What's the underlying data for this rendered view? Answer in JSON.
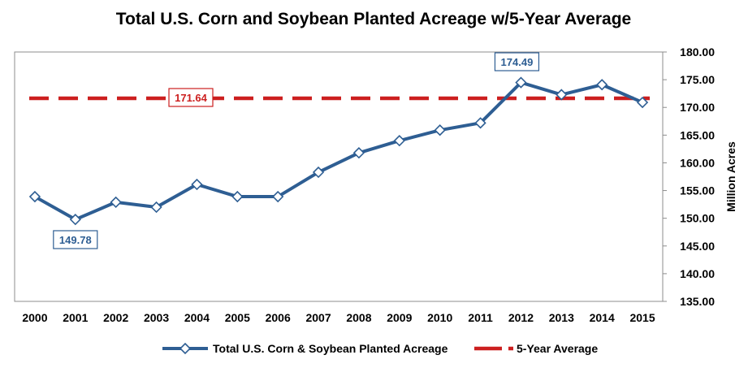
{
  "chart_data": {
    "type": "line",
    "title": "Total U.S. Corn and Soybean Planted Acreage w/5-Year Average",
    "xlabel": "",
    "ylabel": "Million Acres",
    "x": [
      "2000",
      "2001",
      "2002",
      "2003",
      "2004",
      "2005",
      "2006",
      "2007",
      "2008",
      "2009",
      "2010",
      "2011",
      "2012",
      "2013",
      "2014",
      "2015"
    ],
    "ylim": [
      135,
      180
    ],
    "yticks": [
      "135.00",
      "140.00",
      "145.00",
      "150.00",
      "155.00",
      "160.00",
      "165.00",
      "170.00",
      "175.00",
      "180.00"
    ],
    "y_axis_position": "right",
    "grid": true,
    "legend_position": "bottom",
    "series": [
      {
        "name": "Total U.S. Corn & Soybean Planted Acreage",
        "color": "#2e5e93",
        "marker": "diamond",
        "values": [
          153.9,
          149.78,
          152.9,
          152.0,
          156.1,
          153.9,
          153.9,
          158.3,
          161.8,
          164.0,
          165.9,
          167.2,
          174.49,
          172.3,
          174.1,
          170.9
        ]
      },
      {
        "name": "5-Year Average",
        "color": "#cc1f1f",
        "style": "dashed",
        "value": 171.64
      }
    ],
    "annotations": [
      {
        "text": "149.78",
        "x": "2001",
        "color": "#2e5e93"
      },
      {
        "text": "174.49",
        "x": "2012",
        "color": "#2e5e93"
      },
      {
        "text": "171.64",
        "x": "2004",
        "color": "#cc1f1f"
      }
    ]
  }
}
